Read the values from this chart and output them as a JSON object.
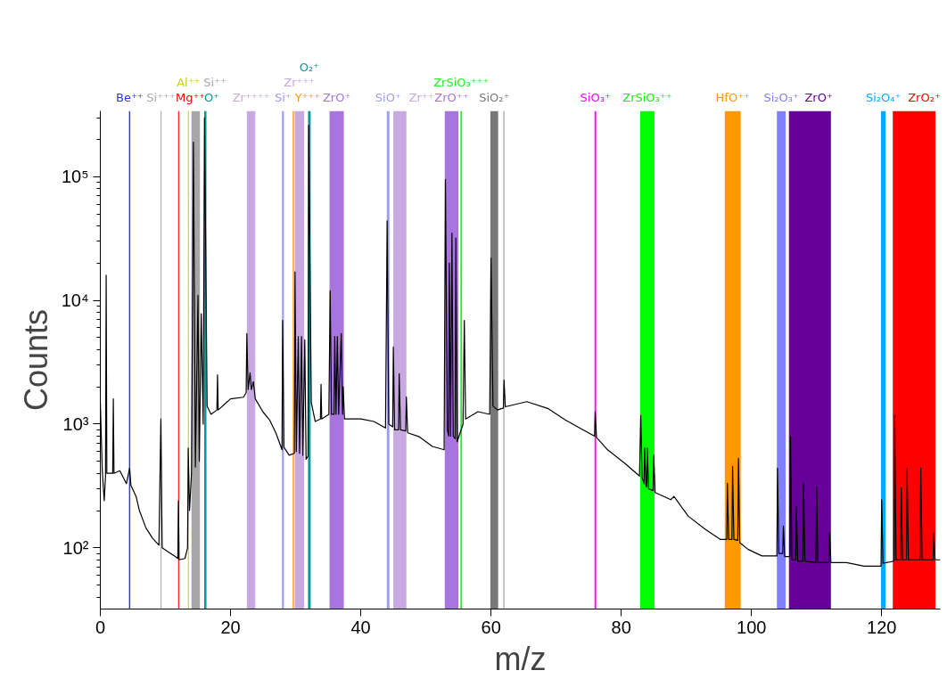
{
  "chart_data": {
    "type": "line",
    "xlabel": "m/z",
    "ylabel": "Counts",
    "log": "y",
    "grid": false,
    "xlim": [
      0,
      129
    ],
    "xticks": [
      0,
      20,
      40,
      60,
      80,
      100,
      120
    ],
    "ylim": [
      32,
      340000
    ],
    "yticks": [
      {
        "value": 100,
        "label": "10²"
      },
      {
        "value": 1000,
        "label": "10³"
      },
      {
        "value": 10000,
        "label": "10⁴"
      },
      {
        "value": 100000,
        "label": "10⁵"
      }
    ],
    "series": [
      {
        "color": "#000000",
        "x": [
          0,
          0.3,
          0.6,
          0.8,
          0.9,
          1.0,
          1.9,
          2.0,
          2.1,
          3.0,
          4.0,
          4.5,
          4.7,
          5.5,
          6.0,
          7.0,
          8.0,
          9.0,
          9.3,
          9.5,
          10.5,
          11.5,
          11.9,
          12.0,
          12.1,
          13.0,
          13.4,
          13.5,
          13.7,
          14.0,
          14.3,
          14.6,
          15.0,
          15.2,
          15.5,
          15.8,
          16.0,
          16.4,
          17.0,
          17.9,
          18.0,
          18.1,
          20.0,
          22.0,
          22.4,
          22.5,
          22.7,
          23.0,
          23.2,
          23.5,
          23.8,
          25.0,
          26.0,
          27.0,
          27.9,
          28.0,
          28.2,
          29.0,
          29.8,
          29.9,
          30.1,
          30.4,
          30.6,
          30.9,
          31.1,
          31.4,
          31.6,
          31.9,
          32.0,
          32.4,
          33.0,
          33.8,
          33.9,
          34.0,
          35.1,
          35.3,
          35.5,
          35.9,
          36.0,
          36.2,
          36.4,
          36.6,
          37.0,
          37.2,
          37.3,
          37.5,
          40.0,
          42.0,
          43.8,
          44.05,
          44.3,
          44.9,
          45.0,
          45.2,
          45.8,
          45.9,
          46.1,
          46.9,
          47.0,
          47.2,
          49.0,
          51.0,
          52.8,
          53.0,
          53.3,
          53.5,
          53.6,
          53.8,
          54.0,
          54.2,
          54.5,
          54.6,
          54.8,
          55.7,
          55.9,
          56.1,
          58.0,
          59.8,
          60.0,
          60.3,
          61.0,
          61.9,
          62.0,
          62.2,
          65.5,
          68.7,
          71.4,
          74.1,
          75.9,
          76.0,
          76.2,
          77.9,
          80.6,
          82.8,
          83.0,
          83.2,
          83.5,
          83.6,
          83.8,
          83.9,
          84.0,
          84.2,
          84.9,
          85.0,
          85.2,
          87.6,
          88.1,
          90.3,
          93.0,
          95.2,
          96.2,
          96.3,
          96.5,
          97.0,
          97.1,
          97.3,
          97.9,
          98.0,
          98.2,
          99.5,
          101.6,
          103.9,
          104.0,
          104.2,
          104.8,
          104.9,
          105.1,
          105.9,
          106.0,
          106.2,
          106.8,
          106.9,
          107.1,
          107.9,
          108.0,
          108.2,
          109.9,
          110.0,
          110.2,
          111.9,
          112.0,
          112.2,
          114.6,
          117.3,
          119.9,
          120.0,
          120.2,
          121.9,
          122.0,
          122.2,
          122.9,
          123.0,
          123.2,
          123.8,
          123.9,
          124.1,
          125.9,
          126.0,
          126.2,
          127.9,
          128.0,
          128.2,
          129.0
        ],
        "values": [
          1500,
          420,
          240,
          380,
          16000,
          400,
          400,
          1600,
          400,
          420,
          330,
          440,
          320,
          260,
          200,
          145,
          120,
          105,
          1100,
          100,
          92,
          85,
          82,
          240,
          80,
          82,
          100,
          640,
          200,
          400,
          190000,
          450,
          11000,
          500,
          7800,
          1000,
          300000,
          1400,
          1200,
          1300,
          2500,
          1300,
          1600,
          1650,
          1800,
          5400,
          1900,
          2600,
          1900,
          2200,
          1600,
          1250,
          1080,
          840,
          620,
          6900,
          650,
          560,
          580,
          17000,
          600,
          5100,
          580,
          5100,
          560,
          4800,
          520,
          550,
          260000,
          1500,
          1050,
          1100,
          2100,
          1100,
          1200,
          12000,
          1200,
          1200,
          5100,
          1200,
          5100,
          1200,
          5400,
          1200,
          2000,
          1100,
          1100,
          1050,
          930,
          44000,
          1000,
          950,
          4200,
          900,
          900,
          2560,
          900,
          880,
          1660,
          850,
          790,
          660,
          620,
          95000,
          900,
          800,
          20000,
          800,
          35000,
          800,
          760,
          32000,
          720,
          1000,
          6900,
          1100,
          1260,
          1200,
          22000,
          1400,
          1300,
          1350,
          2270,
          1380,
          1520,
          1340,
          1080,
          900,
          800,
          1260,
          780,
          620,
          480,
          380,
          1180,
          370,
          330,
          640,
          320,
          310,
          640,
          300,
          290,
          560,
          280,
          245,
          260,
          180,
          140,
          117,
          117,
          333,
          117,
          117,
          455,
          117,
          115,
          530,
          110,
          97,
          86,
          86,
          440,
          90,
          90,
          150,
          85,
          85,
          790,
          80,
          80,
          216,
          78,
          78,
          333,
          78,
          76,
          314,
          76,
          76,
          132,
          76,
          76,
          71,
          71,
          245,
          75,
          78,
          1180,
          80,
          80,
          305,
          80,
          80,
          440,
          80,
          80,
          440,
          80,
          80,
          132,
          80,
          80
        ]
      }
    ],
    "bands": [
      {
        "axis": "x",
        "from": 4.4,
        "to": 4.6,
        "label": "Be⁺⁺",
        "color": "#3333ff"
      },
      {
        "axis": "x",
        "from": 9.25,
        "to": 9.4,
        "label": "Si⁺⁺⁺",
        "color": "#aaaaaa"
      },
      {
        "axis": "x",
        "from": 11.95,
        "to": 12.1,
        "label": "Mg⁺⁺",
        "color": "#ff0000"
      },
      {
        "axis": "x",
        "from": 13.45,
        "to": 13.6,
        "label": "Al⁺⁺",
        "color": "#cccc22"
      },
      {
        "axis": "x",
        "from": 14.0,
        "to": 15.3,
        "label": "Si⁺⁺",
        "color": "#a6a6a6"
      },
      {
        "axis": "x",
        "from": 15.95,
        "to": 16.3,
        "label": "O⁺",
        "color": "#009999"
      },
      {
        "axis": "x",
        "from": 22.5,
        "to": 23.8,
        "label": "Zr⁺⁺⁺⁺",
        "color": "#c8a8e0"
      },
      {
        "axis": "x",
        "from": 27.9,
        "to": 28.2,
        "label": "Si⁺",
        "color": "#9c9cf0"
      },
      {
        "axis": "x",
        "from": 29.55,
        "to": 29.75,
        "label": "Y⁺⁺⁺",
        "color": "#ff9900"
      },
      {
        "axis": "x",
        "from": 29.85,
        "to": 31.3,
        "label": "Zr⁺⁺⁺",
        "color": "#c8a8e0"
      },
      {
        "axis": "x",
        "from": 31.9,
        "to": 32.3,
        "label": "O₂⁺",
        "color": "#009999"
      },
      {
        "axis": "x",
        "from": 35.2,
        "to": 37.4,
        "label": "ZrO⁺",
        "color": "#a875e0"
      },
      {
        "axis": "x",
        "from": 44.0,
        "to": 44.4,
        "label": "SiO⁺",
        "color": "#9c9cf0"
      },
      {
        "axis": "x",
        "from": 45.0,
        "to": 47.0,
        "label": "Zr⁺⁺",
        "color": "#c8a8e0"
      },
      {
        "axis": "x",
        "from": 52.9,
        "to": 55.0,
        "label": "ZrO⁺⁺",
        "color": "#a875e0"
      },
      {
        "axis": "x",
        "from": 55.3,
        "to": 55.55,
        "label": "ZrSiO₃⁺⁺⁺",
        "color": "#22ee22"
      },
      {
        "axis": "x",
        "from": 59.9,
        "to": 61.1,
        "label": "SiO₂⁺",
        "color": "#777777"
      },
      {
        "axis": "x",
        "from": 61.9,
        "to": 62.05,
        "color": "#999999"
      },
      {
        "axis": "x",
        "from": 75.9,
        "to": 76.15,
        "label": "SiO₃⁺",
        "color": "#ff00ff"
      },
      {
        "axis": "x",
        "from": 82.9,
        "to": 85.1,
        "label": "ZrSiO₃⁺⁺",
        "color": "#00ff00"
      },
      {
        "axis": "x",
        "from": 95.9,
        "to": 98.35,
        "label": "HfO⁺⁺",
        "color": "#ff9900"
      },
      {
        "axis": "x",
        "from": 103.9,
        "to": 105.25,
        "label": "Si₂O₃⁺",
        "color": "#8080ff"
      },
      {
        "axis": "x",
        "from": 105.75,
        "to": 112.2,
        "label": "ZrO⁺",
        "color": "#660099"
      },
      {
        "axis": "x",
        "from": 119.9,
        "to": 120.6,
        "label": "Si₂O₄⁺",
        "color": "#00aaff"
      },
      {
        "axis": "x",
        "from": 121.7,
        "to": 128.25,
        "label": "ZrO₂⁺",
        "color": "#ff0000"
      }
    ]
  }
}
